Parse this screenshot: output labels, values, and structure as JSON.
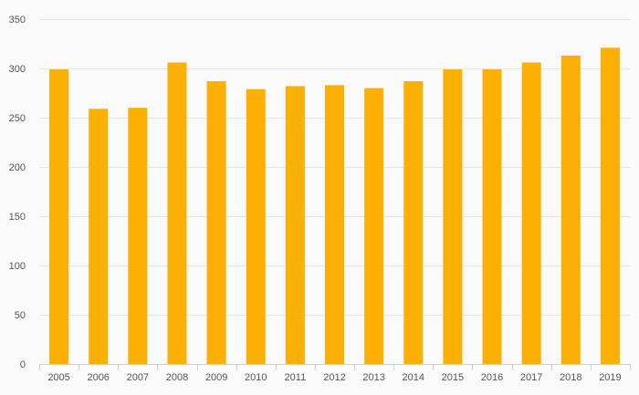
{
  "chart_data": {
    "type": "bar",
    "title": "",
    "xlabel": "",
    "ylabel": "",
    "categories": [
      "2005",
      "2006",
      "2007",
      "2008",
      "2009",
      "2010",
      "2011",
      "2012",
      "2013",
      "2014",
      "2015",
      "2016",
      "2017",
      "2018",
      "2019"
    ],
    "values": [
      299,
      259,
      260,
      306,
      287,
      279,
      282,
      283,
      280,
      287,
      299,
      299,
      306,
      313,
      321
    ],
    "ylim": [
      0,
      350
    ],
    "yticks": [
      0,
      50,
      100,
      150,
      200,
      250,
      300,
      350
    ],
    "grid": true,
    "legend": "none",
    "bar_color": "#FBB003",
    "grid_color": "#e6e6e6",
    "background": "#fafafa"
  }
}
